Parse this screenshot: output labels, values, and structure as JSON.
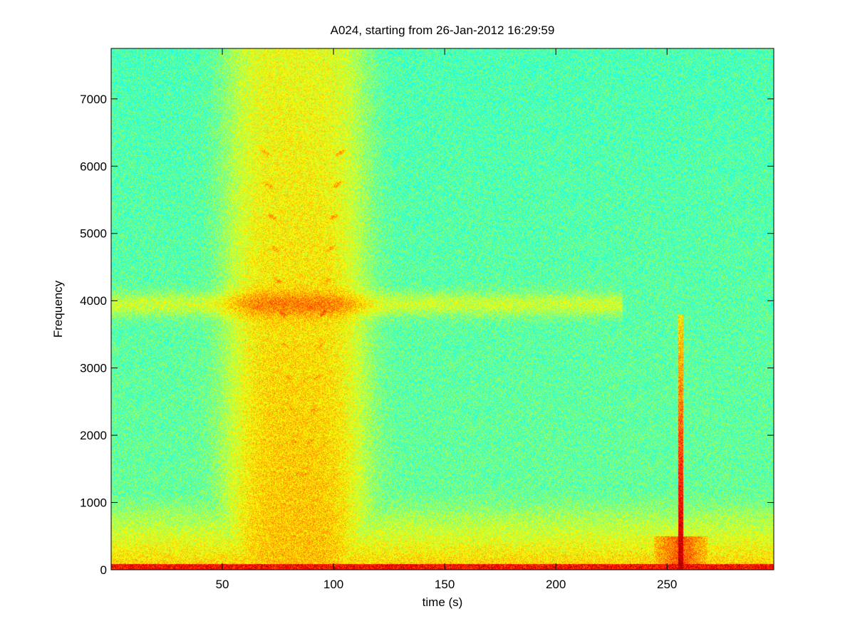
{
  "chart_data": {
    "type": "heatmap",
    "title": "A024, starting from 26-Jan-2012 16:29:59",
    "xlabel": "time (s)",
    "ylabel": "Frequency",
    "xlim": [
      0,
      298
    ],
    "ylim": [
      0,
      7750
    ],
    "xticks": [
      50,
      100,
      150,
      200,
      250
    ],
    "yticks": [
      0,
      1000,
      2000,
      3000,
      4000,
      5000,
      6000,
      7000
    ],
    "colormap": "jet",
    "grid": false,
    "legend": "none",
    "background_level": 0.45,
    "features": [
      {
        "name": "broadband-event",
        "t_start": 48,
        "t_end": 118,
        "f_max": 7700,
        "level": 0.66
      },
      {
        "name": "v-shaped-harmonics",
        "t_center": 86,
        "f_min": 1400,
        "f_max": 6600,
        "level": 0.72
      },
      {
        "name": "band-4000Hz",
        "t_start": 0,
        "t_end": 230,
        "f_center": 3950,
        "level": 0.56
      },
      {
        "name": "low-frequency-band",
        "t_start": 0,
        "t_end": 298,
        "f_min": 0,
        "f_max": 800,
        "level": 0.68
      },
      {
        "name": "transient-spike",
        "t_center": 256,
        "f_max": 3800,
        "level": 0.95
      }
    ]
  }
}
